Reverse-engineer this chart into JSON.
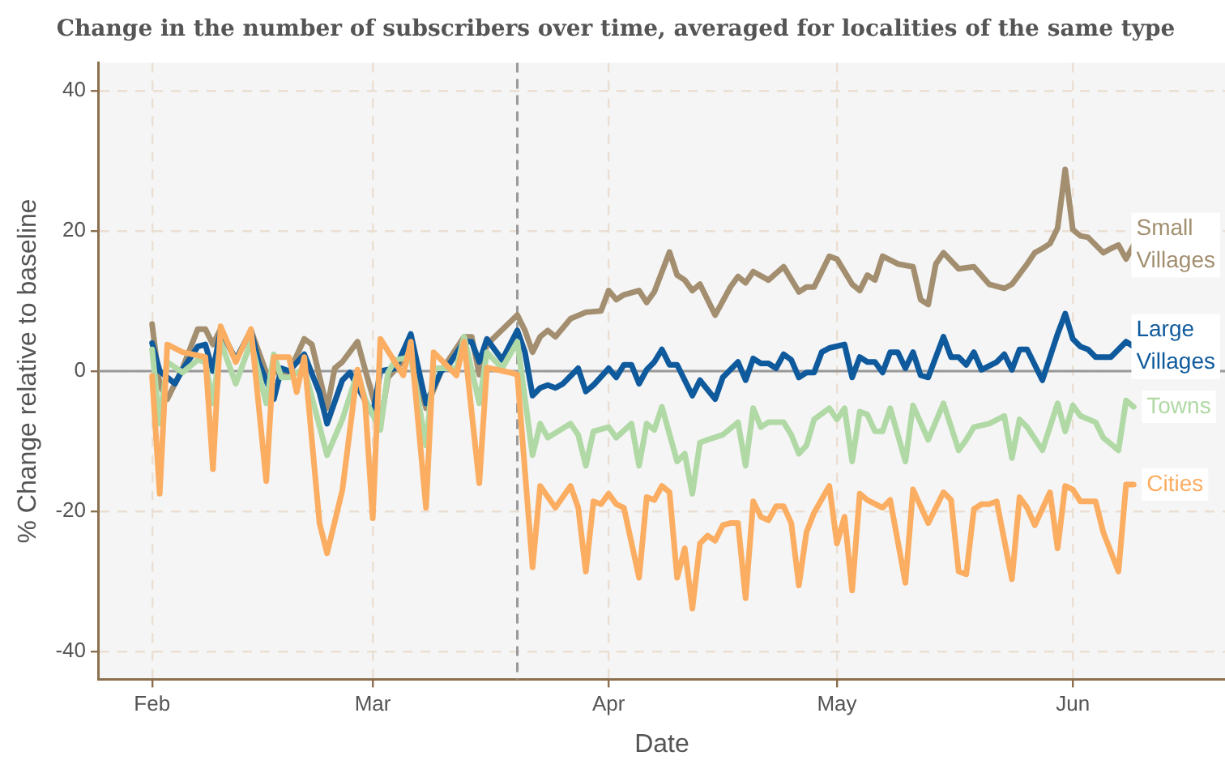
{
  "chart_data": {
    "type": "line",
    "title": "Change in the number of subscribers over time, averaged for localities of the same type",
    "xlabel": "Date",
    "ylabel": "% Change relative to baseline",
    "xlim": [
      "--01-25",
      "--06-21"
    ],
    "xticks": [
      {
        "value": "--02-01",
        "label": "Feb"
      },
      {
        "value": "--03-01",
        "label": "Mar"
      },
      {
        "value": "--04-01",
        "label": "Apr"
      },
      {
        "value": "--05-01",
        "label": "May"
      },
      {
        "value": "--06-01",
        "label": "Jun"
      }
    ],
    "ylim": [
      -44,
      44
    ],
    "yticks": [
      -40,
      -20,
      0,
      20,
      40
    ],
    "grid": true,
    "legend": false,
    "marker": "none",
    "line_style": "solid",
    "ref_lines": [
      {
        "axis": "x",
        "value": "--03-20",
        "color": "#999999",
        "line_style": "dashed"
      },
      {
        "axis": "y",
        "value": 0,
        "color": "#999999",
        "line_style": "solid"
      }
    ],
    "series": [
      {
        "name": "Small Villages",
        "color": "#a38f70",
        "x": [
          "--02-01",
          "--02-02",
          "--02-03",
          "--02-05",
          "--02-07",
          "--02-08",
          "--02-09",
          "--02-10",
          "--02-12",
          "--02-14",
          "--02-16",
          "--02-19",
          "--02-21",
          "--02-22",
          "--02-24",
          "--02-25",
          "--02-26",
          "--02-28",
          "--02-29",
          "--03-02",
          "--03-03",
          "--03-06",
          "--03-08",
          "--03-10",
          "--03-13",
          "--03-14",
          "--03-15",
          "--03-16",
          "--03-20",
          "--03-21",
          "--03-22",
          "--03-23",
          "--03-24",
          "--03-25",
          "--03-27",
          "--03-29",
          "--03-31",
          "--04-01",
          "--04-02",
          "--04-03",
          "--04-05",
          "--04-06",
          "--04-07",
          "--04-09",
          "--04-10",
          "--04-11",
          "--04-12",
          "--04-13",
          "--04-15",
          "--04-17",
          "--04-18",
          "--04-19",
          "--04-20",
          "--04-22",
          "--04-24",
          "--04-26",
          "--04-27",
          "--04-28",
          "--04-29",
          "--04-30",
          "--05-01",
          "--05-03",
          "--05-04",
          "--05-05",
          "--05-06",
          "--05-07",
          "--05-09",
          "--05-11",
          "--05-12",
          "--05-13",
          "--05-14",
          "--05-15",
          "--05-17",
          "--05-19",
          "--05-21",
          "--05-23",
          "--05-24",
          "--05-26",
          "--05-27",
          "--05-28",
          "--05-29",
          "--05-30",
          "--05-31",
          "--06-01",
          "--06-02",
          "--06-03",
          "--06-05",
          "--06-06",
          "--06-07",
          "--06-08",
          "--06-09"
        ],
        "values": [
          6.7,
          -2,
          -4,
          0.4,
          6,
          6,
          3.8,
          6,
          1.6,
          5.8,
          -0.2,
          -0.2,
          4.6,
          3.8,
          -5.3,
          0.4,
          1.3,
          4.2,
          0.2,
          -7.5,
          -0.9,
          2.7,
          -5.3,
          0,
          4.9,
          4.9,
          -0.5,
          3.8,
          8,
          5.8,
          2.7,
          4.9,
          5.8,
          4.9,
          7.5,
          8.4,
          8.6,
          11.5,
          10.2,
          10.9,
          11.5,
          9.8,
          11.3,
          17,
          13.7,
          13,
          11.5,
          12.4,
          8,
          12,
          13.5,
          12.6,
          14.2,
          13,
          14.9,
          11.3,
          12,
          12,
          14.2,
          16.4,
          16,
          12.4,
          11.5,
          13.7,
          13,
          16.4,
          15.3,
          14.9,
          10.2,
          9.5,
          15.3,
          16.9,
          14.6,
          14.9,
          12.4,
          11.8,
          12.4,
          15.3,
          16.9,
          17.5,
          18.2,
          20.4,
          28.8,
          20.2,
          19.3,
          19.1,
          16.9,
          17.5,
          18,
          16,
          18
        ]
      },
      {
        "name": "Large Villages",
        "color": "#0f5a9c",
        "x": [
          "--02-01",
          "--02-02",
          "--02-04",
          "--02-05",
          "--02-07",
          "--02-08",
          "--02-09",
          "--02-10",
          "--02-12",
          "--02-14",
          "--02-15",
          "--02-17",
          "--02-18",
          "--02-19",
          "--02-21",
          "--02-23",
          "--02-24",
          "--02-26",
          "--02-27",
          "--03-01",
          "--03-02",
          "--03-04",
          "--03-06",
          "--03-08",
          "--03-10",
          "--03-11",
          "--03-13",
          "--03-14",
          "--03-15",
          "--03-16",
          "--03-18",
          "--03-20",
          "--03-21",
          "--03-22",
          "--03-23",
          "--03-24",
          "--03-25",
          "--03-26",
          "--03-28",
          "--03-29",
          "--03-30",
          "--04-01",
          "--04-02",
          "--04-03",
          "--04-04",
          "--04-05",
          "--04-06",
          "--04-07",
          "--04-08",
          "--04-09",
          "--04-10",
          "--04-12",
          "--04-13",
          "--04-15",
          "--04-16",
          "--04-18",
          "--04-19",
          "--04-20",
          "--04-21",
          "--04-22",
          "--04-23",
          "--04-24",
          "--04-25",
          "--04-26",
          "--04-27",
          "--04-28",
          "--04-29",
          "--04-30",
          "--05-02",
          "--05-03",
          "--05-04",
          "--05-05",
          "--05-06",
          "--05-07",
          "--05-08",
          "--05-09",
          "--05-10",
          "--05-11",
          "--05-12",
          "--05-13",
          "--05-15",
          "--05-16",
          "--05-17",
          "--05-18",
          "--05-19",
          "--05-20",
          "--05-22",
          "--05-23",
          "--05-24",
          "--05-25",
          "--05-26",
          "--05-28",
          "--05-30",
          "--05-31",
          "--06-01",
          "--06-02",
          "--06-03",
          "--06-04",
          "--06-06",
          "--06-08",
          "--06-09"
        ],
        "values": [
          4,
          0,
          -1.8,
          0.2,
          3.5,
          3.8,
          0,
          5.8,
          1.6,
          5.8,
          1.3,
          -4,
          0.4,
          0,
          2.4,
          -3.1,
          -7.5,
          -1.3,
          -0.2,
          -6.2,
          0,
          0.4,
          5.3,
          -4.6,
          0,
          0.9,
          4.2,
          4.2,
          1.3,
          4.6,
          1.6,
          5.8,
          2.7,
          -3.5,
          -2.4,
          -2,
          -2.4,
          -1.8,
          0.4,
          -2.9,
          -2,
          0.4,
          -0.9,
          0.9,
          0.9,
          -1.8,
          0.2,
          1.3,
          3.1,
          0.9,
          0.9,
          -3.5,
          -1.3,
          -4,
          -0.9,
          1.3,
          -1.3,
          1.8,
          1.1,
          1.1,
          0.4,
          2.4,
          1.6,
          -0.9,
          -0.2,
          -0.2,
          2.7,
          3.3,
          3.8,
          -0.9,
          2,
          1.3,
          1.3,
          -0.2,
          2.7,
          2.7,
          0.4,
          2.7,
          -0.6,
          -0.9,
          4.9,
          2,
          2,
          0.9,
          2.7,
          0.2,
          1.3,
          2.4,
          0.2,
          3.1,
          3.1,
          -1.3,
          5.3,
          8.2,
          4.6,
          3.5,
          3.1,
          2,
          2,
          4.2,
          3.5
        ]
      },
      {
        "name": "Towns",
        "color": "#b0d9a5",
        "x": [
          "--02-01",
          "--02-02",
          "--02-03",
          "--02-05",
          "--02-07",
          "--02-08",
          "--02-09",
          "--02-10",
          "--02-12",
          "--02-14",
          "--02-16",
          "--02-17",
          "--02-18",
          "--02-19",
          "--02-21",
          "--02-24",
          "--02-26",
          "--02-28",
          "--02-29",
          "--03-02",
          "--03-03",
          "--03-04",
          "--03-06",
          "--03-08",
          "--03-09",
          "--03-12",
          "--03-13",
          "--03-15",
          "--03-16",
          "--03-18",
          "--03-20",
          "--03-22",
          "--03-23",
          "--03-24",
          "--03-27",
          "--03-28",
          "--03-29",
          "--03-30",
          "--04-01",
          "--04-02",
          "--04-04",
          "--04-05",
          "--04-06",
          "--04-07",
          "--04-08",
          "--04-10",
          "--04-11",
          "--04-12",
          "--04-13",
          "--04-14",
          "--04-16",
          "--04-18",
          "--04-19",
          "--04-20",
          "--04-21",
          "--04-22",
          "--04-24",
          "--04-25",
          "--04-26",
          "--04-27",
          "--04-28",
          "--04-30",
          "--05-01",
          "--05-02",
          "--05-03",
          "--05-04",
          "--05-05",
          "--05-06",
          "--05-07",
          "--05-08",
          "--05-10",
          "--05-11",
          "--05-13",
          "--05-15",
          "--05-17",
          "--05-18",
          "--05-19",
          "--05-21",
          "--05-23",
          "--05-24",
          "--05-25",
          "--05-26",
          "--05-28",
          "--05-30",
          "--05-31",
          "--06-01",
          "--06-02",
          "--06-04",
          "--06-05",
          "--06-07",
          "--06-08",
          "--06-09"
        ],
        "values": [
          3.1,
          -7.5,
          1.3,
          -0.2,
          1.6,
          1.3,
          -4.6,
          4.2,
          -1.8,
          4.2,
          -4.6,
          2.4,
          -0.9,
          -0.9,
          0.4,
          -12,
          -6.9,
          -0.2,
          -4,
          -8.4,
          -0.2,
          1.6,
          2,
          -10.6,
          0.4,
          0.4,
          4.9,
          -4.6,
          2.7,
          0.4,
          4.2,
          -12,
          -7.5,
          -9.5,
          -7.5,
          -9.1,
          -13.5,
          -8.6,
          -8,
          -9.5,
          -7.5,
          -13.5,
          -7.5,
          -8.4,
          -5.1,
          -12.9,
          -11.8,
          -17.5,
          -10.2,
          -9.8,
          -9.1,
          -7.3,
          -13.5,
          -5.3,
          -8,
          -7.3,
          -7.3,
          -9.1,
          -11.8,
          -10.6,
          -6.9,
          -5.3,
          -6.9,
          -5.3,
          -12.9,
          -5.8,
          -6.2,
          -8.6,
          -8.6,
          -5.3,
          -12.9,
          -4.9,
          -9.8,
          -4.6,
          -11.3,
          -9.8,
          -8,
          -7.5,
          -6.4,
          -12.4,
          -6.9,
          -8,
          -11.3,
          -4.6,
          -8.6,
          -4.9,
          -6.4,
          -7.3,
          -9.5,
          -11.3,
          -4.2,
          -5.1
        ]
      },
      {
        "name": "Cities",
        "color": "#fbad61",
        "x": [
          "--02-01",
          "--02-02",
          "--02-03",
          "--02-05",
          "--02-08",
          "--02-09",
          "--02-10",
          "--02-12",
          "--02-14",
          "--02-16",
          "--02-17",
          "--02-19",
          "--02-20",
          "--02-21",
          "--02-23",
          "--02-24",
          "--02-26",
          "--02-28",
          "--02-29",
          "--03-01",
          "--03-02",
          "--03-05",
          "--03-06",
          "--03-08",
          "--03-09",
          "--03-12",
          "--03-13",
          "--03-15",
          "--03-16",
          "--03-19",
          "--03-20",
          "--03-22",
          "--03-23",
          "--03-25",
          "--03-27",
          "--03-28",
          "--03-29",
          "--03-30",
          "--03-31",
          "--04-01",
          "--04-02",
          "--04-03",
          "--04-05",
          "--04-06",
          "--04-07",
          "--04-08",
          "--04-09",
          "--04-10",
          "--04-11",
          "--04-12",
          "--04-13",
          "--04-14",
          "--04-15",
          "--04-16",
          "--04-17",
          "--04-18",
          "--04-19",
          "--04-20",
          "--04-21",
          "--04-22",
          "--04-23",
          "--04-24",
          "--04-25",
          "--04-26",
          "--04-27",
          "--04-28",
          "--04-30",
          "--05-01",
          "--05-02",
          "--05-03",
          "--05-04",
          "--05-05",
          "--05-07",
          "--05-08",
          "--05-10",
          "--05-11",
          "--05-13",
          "--05-15",
          "--05-16",
          "--05-17",
          "--05-18",
          "--05-19",
          "--05-20",
          "--05-21",
          "--05-22",
          "--05-24",
          "--05-25",
          "--05-26",
          "--05-27",
          "--05-29",
          "--05-30",
          "--05-31",
          "--06-01",
          "--06-02",
          "--06-04",
          "--06-05",
          "--06-07",
          "--06-08",
          "--06-09"
        ],
        "values": [
          -0.7,
          -17.5,
          3.8,
          2.7,
          2,
          -14,
          6.4,
          1.3,
          6,
          -15.7,
          2,
          2,
          -3,
          2,
          -21.7,
          -26,
          -17,
          0.2,
          -4.6,
          -21,
          4.6,
          -0.6,
          4.2,
          -19.5,
          2.7,
          -0.6,
          4.2,
          -16,
          0.5,
          -0.2,
          -0.5,
          -28,
          -16.4,
          -19.5,
          -16.4,
          -19.5,
          -28.6,
          -18.6,
          -19,
          -17.5,
          -19,
          -19.5,
          -29.5,
          -18,
          -18.4,
          -16.4,
          -17.3,
          -29.5,
          -25.3,
          -33.9,
          -24.6,
          -23.5,
          -24.2,
          -22,
          -21.7,
          -21.7,
          -32.4,
          -18.6,
          -20.8,
          -21.3,
          -19.3,
          -19.3,
          -21.7,
          -30.6,
          -23,
          -20.2,
          -16.4,
          -24.6,
          -20.8,
          -31.3,
          -17.5,
          -18.4,
          -19.5,
          -18.4,
          -30.2,
          -16.9,
          -21.7,
          -17.3,
          -18.4,
          -28.6,
          -29,
          -19.7,
          -19,
          -19,
          -18.6,
          -29.7,
          -18,
          -19.5,
          -22,
          -17.3,
          -25.3,
          -16.4,
          -16.9,
          -18.6,
          -18.6,
          -23,
          -28.6,
          -16.2,
          -16.2
        ]
      }
    ]
  }
}
